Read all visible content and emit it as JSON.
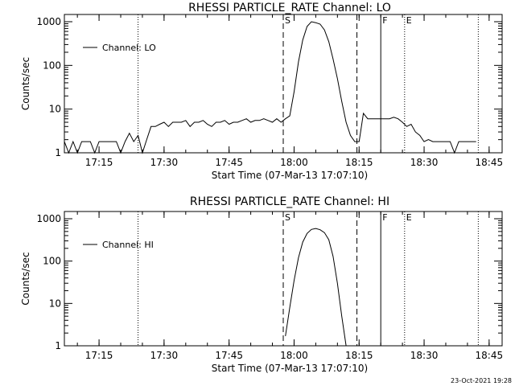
{
  "footer": {
    "timestamp": "23-Oct-2021 19:28"
  },
  "chart_data": [
    {
      "type": "line",
      "title": "RHESSI PARTICLE_RATE Channel: LO",
      "xlabel": "Start Time (07-Mar-13 17:07:10)",
      "ylabel": "Counts/sec",
      "y_scale": "log",
      "xlim": [
        "17:07",
        "18:48"
      ],
      "ylim": [
        1,
        1000
      ],
      "x_ticks": [
        "17:15",
        "17:30",
        "17:45",
        "18:00",
        "18:15",
        "18:30",
        "18:45"
      ],
      "y_ticks": [
        "1",
        "10",
        "100",
        "1000"
      ],
      "legend": {
        "label": "Channel: LO",
        "position": "top-left"
      },
      "markers": [
        {
          "time": "17:24",
          "label": "",
          "style": "dotted"
        },
        {
          "time": "17:57.5",
          "label": "S",
          "style": "dashed"
        },
        {
          "time": "18:14.5",
          "label": "",
          "style": "dashed"
        },
        {
          "time": "18:20",
          "label": "F",
          "style": "solid"
        },
        {
          "time": "18:25.5",
          "label": "E",
          "style": "dotted"
        },
        {
          "time": "18:42.5",
          "label": "",
          "style": "dotted"
        }
      ],
      "series": [
        {
          "name": "Channel: LO",
          "x": [
            "17:07",
            "17:08",
            "17:09",
            "17:10",
            "17:11",
            "17:12",
            "17:13",
            "17:14",
            "17:15",
            "17:16",
            "17:17",
            "17:18",
            "17:19",
            "17:20",
            "17:21",
            "17:22",
            "17:23",
            "17:24",
            "17:25",
            "17:26",
            "17:27",
            "17:28",
            "17:29",
            "17:30",
            "17:31",
            "17:32",
            "17:33",
            "17:34",
            "17:35",
            "17:36",
            "17:37",
            "17:38",
            "17:39",
            "17:40",
            "17:41",
            "17:42",
            "17:43",
            "17:44",
            "17:45",
            "17:46",
            "17:47",
            "17:48",
            "17:49",
            "17:50",
            "17:51",
            "17:52",
            "17:53",
            "17:54",
            "17:55",
            "17:56",
            "17:57",
            "17:58",
            "17:59",
            "18:00",
            "18:01",
            "18:02",
            "18:03",
            "18:04",
            "18:05",
            "18:06",
            "18:07",
            "18:08",
            "18:09",
            "18:10",
            "18:11",
            "18:12",
            "18:13",
            "18:14",
            "18:15",
            "18:16",
            "18:17",
            "18:18",
            "18:19",
            "18:20",
            "18:21",
            "18:22",
            "18:23",
            "18:24",
            "18:25",
            "18:26",
            "18:27",
            "18:28",
            "18:29",
            "18:30",
            "18:31",
            "18:32",
            "18:33",
            "18:34",
            "18:35",
            "18:36",
            "18:37",
            "18:38",
            "18:39",
            "18:40",
            "18:41",
            "18:42"
          ],
          "y": [
            1.8,
            1.0,
            1.8,
            1.0,
            1.8,
            1.8,
            1.8,
            1.0,
            1.8,
            1.8,
            1.8,
            1.8,
            1.8,
            1.0,
            1.8,
            2.8,
            1.8,
            2.5,
            1.0,
            2.0,
            4.0,
            4.0,
            4.5,
            5.0,
            4.0,
            5.0,
            5.0,
            5.0,
            5.5,
            4.0,
            5.0,
            5.0,
            5.5,
            4.5,
            4.0,
            5.0,
            5.0,
            5.5,
            4.5,
            5.0,
            5.0,
            5.5,
            6.0,
            5.0,
            5.5,
            5.5,
            6.0,
            5.5,
            5.0,
            6.0,
            5.0,
            6.0,
            7.0,
            25,
            120,
            380,
            780,
            1000,
            950,
            880,
            650,
            350,
            140,
            50,
            15,
            5,
            2.5,
            1.8,
            1.8,
            8.0,
            6.0,
            6.0,
            6.0,
            6.0,
            6.0,
            6.0,
            6.5,
            6.0,
            5.0,
            4.0,
            4.5,
            3.0,
            2.5,
            1.8,
            2.0,
            1.8,
            1.8,
            1.8,
            1.8,
            1.8,
            1.0,
            1.8,
            1.8,
            1.8,
            1.8,
            1.8
          ]
        }
      ]
    },
    {
      "type": "line",
      "title": "RHESSI PARTICLE_RATE Channel: HI",
      "xlabel": "Start Time (07-Mar-13 17:07:10)",
      "ylabel": "Counts/sec",
      "y_scale": "log",
      "xlim": [
        "17:07",
        "18:48"
      ],
      "ylim": [
        1,
        1000
      ],
      "x_ticks": [
        "17:15",
        "17:30",
        "17:45",
        "18:00",
        "18:15",
        "18:30",
        "18:45"
      ],
      "y_ticks": [
        "1",
        "10",
        "100",
        "1000"
      ],
      "legend": {
        "label": "Channel: HI",
        "position": "top-left"
      },
      "markers": [
        {
          "time": "17:24",
          "label": "",
          "style": "dotted"
        },
        {
          "time": "17:57.5",
          "label": "S",
          "style": "dashed"
        },
        {
          "time": "18:14.5",
          "label": "",
          "style": "dashed"
        },
        {
          "time": "18:20",
          "label": "F",
          "style": "solid"
        },
        {
          "time": "18:25.5",
          "label": "E",
          "style": "dotted"
        },
        {
          "time": "18:42.5",
          "label": "",
          "style": "dotted"
        }
      ],
      "series": [
        {
          "name": "Channel: HI",
          "x": [
            "17:58",
            "17:59",
            "18:00",
            "18:01",
            "18:02",
            "18:03",
            "18:04",
            "18:05",
            "18:06",
            "18:07",
            "18:08",
            "18:09",
            "18:10",
            "18:11",
            "18:12"
          ],
          "y": [
            1.7,
            8.0,
            35,
            120,
            280,
            450,
            560,
            590,
            550,
            470,
            320,
            130,
            30,
            5,
            1.0
          ]
        }
      ]
    }
  ]
}
